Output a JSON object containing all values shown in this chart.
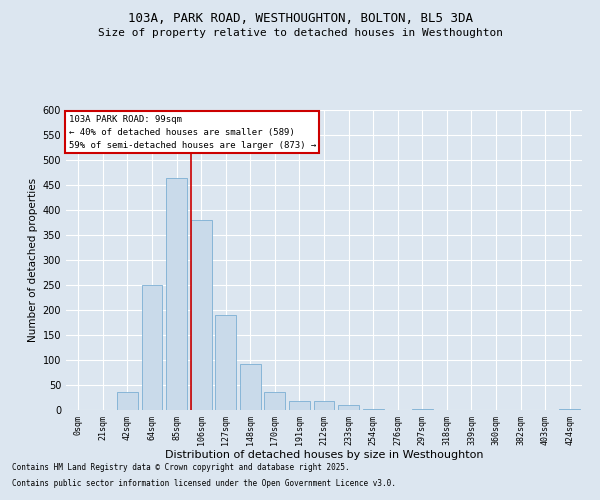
{
  "title_line1": "103A, PARK ROAD, WESTHOUGHTON, BOLTON, BL5 3DA",
  "title_line2": "Size of property relative to detached houses in Westhoughton",
  "xlabel": "Distribution of detached houses by size in Westhoughton",
  "ylabel": "Number of detached properties",
  "footer_line1": "Contains HM Land Registry data © Crown copyright and database right 2025.",
  "footer_line2": "Contains public sector information licensed under the Open Government Licence v3.0.",
  "annotation_line1": "103A PARK ROAD: 99sqm",
  "annotation_line2": "← 40% of detached houses are smaller (589)",
  "annotation_line3": "59% of semi-detached houses are larger (873) →",
  "bar_color": "#c9daea",
  "bar_edge_color": "#7bafd4",
  "vline_color": "#cc0000",
  "annotation_box_color": "#ffffff",
  "annotation_box_edge": "#cc0000",
  "background_color": "#dce6f0",
  "grid_color": "#ffffff",
  "categories": [
    "0sqm",
    "21sqm",
    "42sqm",
    "64sqm",
    "85sqm",
    "106sqm",
    "127sqm",
    "148sqm",
    "170sqm",
    "191sqm",
    "212sqm",
    "233sqm",
    "254sqm",
    "276sqm",
    "297sqm",
    "318sqm",
    "339sqm",
    "360sqm",
    "382sqm",
    "403sqm",
    "424sqm"
  ],
  "values": [
    0,
    0,
    37,
    250,
    465,
    380,
    190,
    93,
    37,
    18,
    18,
    10,
    3,
    0,
    2,
    0,
    0,
    0,
    0,
    0,
    2
  ],
  "vline_x_index": 4.6,
  "ylim": [
    0,
    600
  ],
  "yticks": [
    0,
    50,
    100,
    150,
    200,
    250,
    300,
    350,
    400,
    450,
    500,
    550,
    600
  ]
}
